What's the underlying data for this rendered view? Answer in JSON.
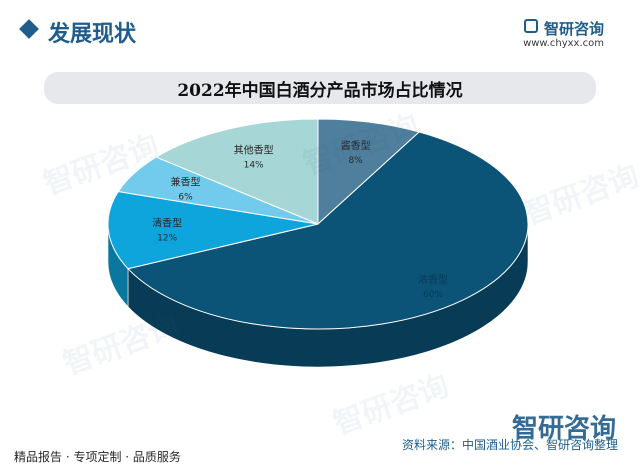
{
  "header": {
    "section_title": "发展现状",
    "brand": "智研咨询",
    "site": "www.chyxx.com"
  },
  "chart_data": {
    "type": "pie",
    "title": "2022年中国白酒分产品市场占比情况",
    "slices": [
      {
        "label": "酱香型",
        "pct_label": "8%",
        "value": 8,
        "color": "#4f7f9c"
      },
      {
        "label": "浓香型",
        "pct_label": "60%",
        "value": 60,
        "color": "#0b5377"
      },
      {
        "label": "清香型",
        "pct_label": "12%",
        "value": 12,
        "color": "#0ea5dd"
      },
      {
        "label": "兼香型",
        "pct_label": "6%",
        "value": 6,
        "color": "#72cbed"
      },
      {
        "label": "其他香型",
        "pct_label": "14%",
        "value": 14,
        "color": "#a7d6d6"
      }
    ]
  },
  "footer": {
    "tags": "精品报告 · 专项定制 · 品质服务",
    "source": "资料来源：中国酒业协会、智研咨询整理",
    "brand": "智研咨询"
  },
  "watermark": "智研咨询"
}
